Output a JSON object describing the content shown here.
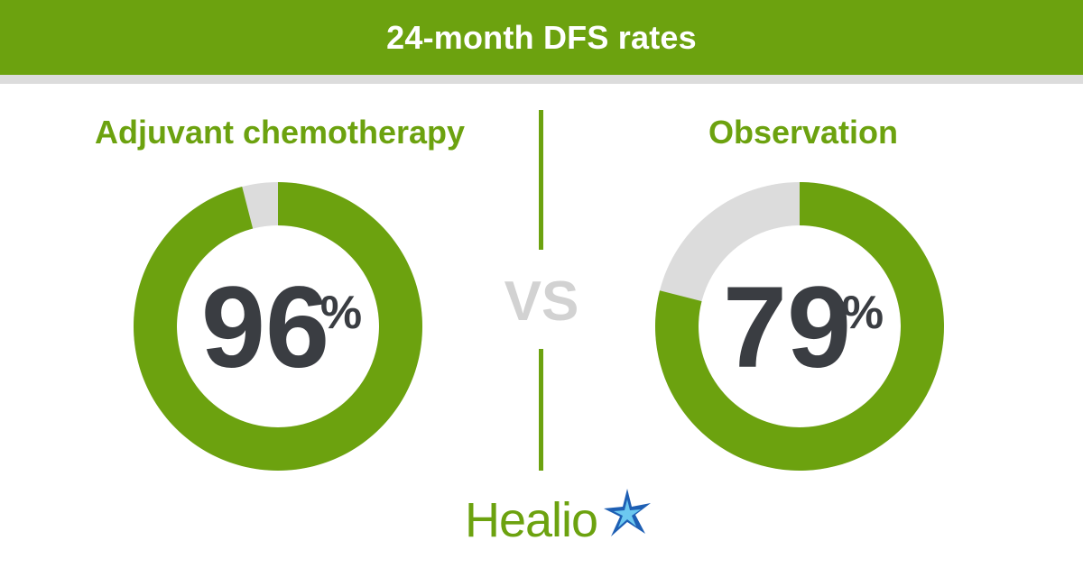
{
  "header": {
    "title": "24-month DFS rates"
  },
  "colors": {
    "brand_green": "#6ca20f",
    "track_gray": "#dcdcdc",
    "header_rule": "#dcdcdc",
    "number_text": "#3a3d42",
    "vs_gray": "#d2d2d2",
    "logo_blue": "#1e5fb4",
    "logo_light_blue": "#6cc8f0"
  },
  "vs_label": "VS",
  "logo": {
    "text": "Healio",
    "icon": "star-icon"
  },
  "chart_data": [
    {
      "type": "donut",
      "title": "Adjuvant chemotherapy",
      "value": 96,
      "max": 100,
      "display_number": "96",
      "unit": "%"
    },
    {
      "type": "donut",
      "title": "Observation",
      "value": 79,
      "max": 100,
      "display_number": "79",
      "unit": "%"
    }
  ]
}
